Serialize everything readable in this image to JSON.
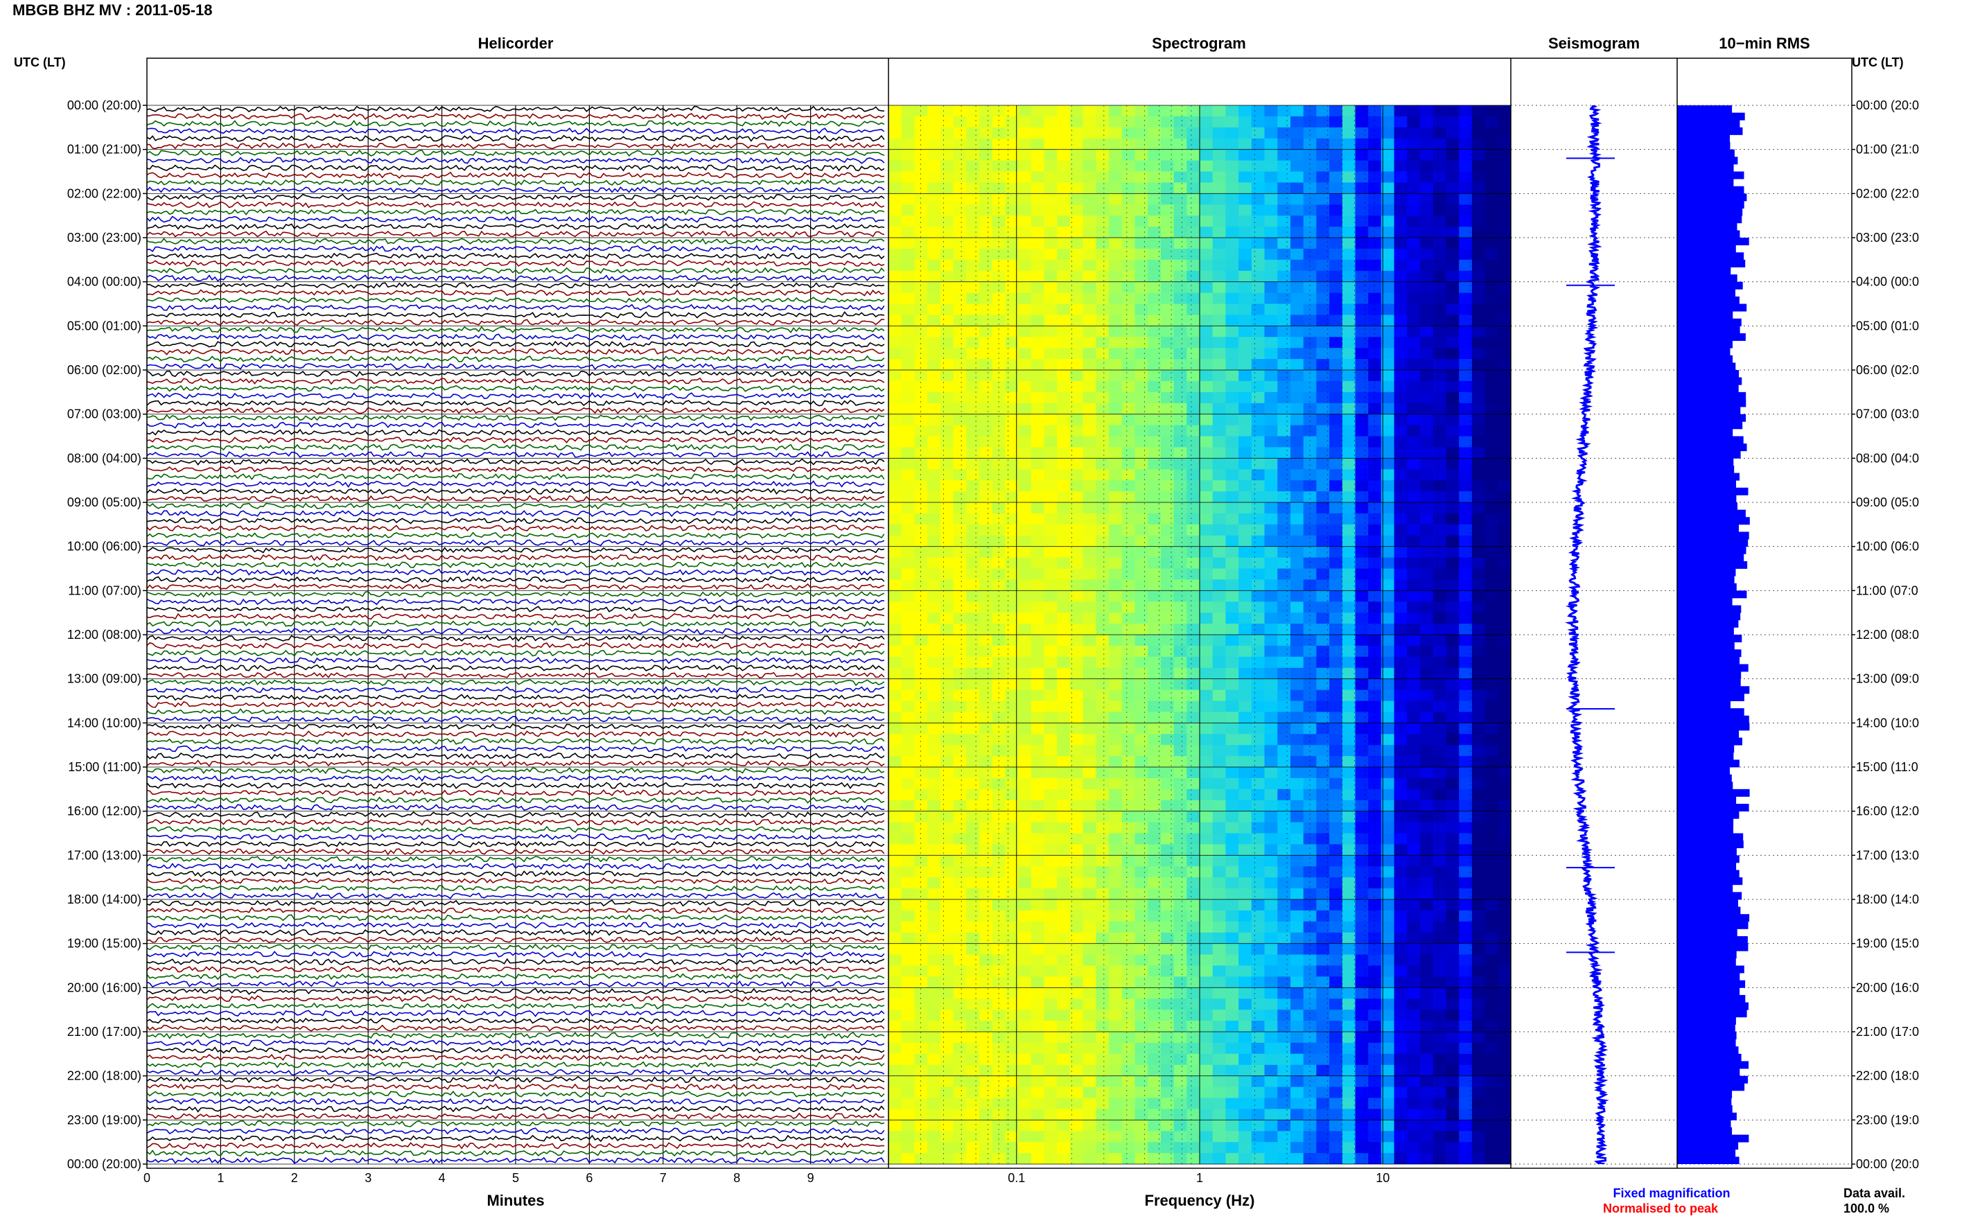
{
  "header": {
    "station_title": "MBGB BHZ MV : 2011-05-18",
    "utc_lt_label": "UTC (LT)"
  },
  "panels": {
    "helicorder": "Helicorder",
    "spectrogram": "Spectrogram",
    "seismogram": "Seismogram",
    "rms": "10−min RMS"
  },
  "footer": {
    "fixed_magnification": "Fixed magnification",
    "normalised_to_peak": "Normalised to peak",
    "data_avail_label": "Data avail.",
    "data_avail_value": "100.0 %"
  },
  "colors": {
    "helicorder_traces": [
      "#000000",
      "#8b0000",
      "#006400",
      "#0000cd"
    ],
    "fixed_magnification": "#0000ff",
    "normalised_to_peak": "#ff0000",
    "seismogram": "#0000ff",
    "rms_bars": "#0000ff"
  },
  "chart_data": [
    {
      "type": "line",
      "title": "Helicorder",
      "xlabel": "Minutes",
      "xlim": [
        0,
        10
      ],
      "x_ticks": [
        0,
        1,
        2,
        3,
        4,
        5,
        6,
        7,
        8,
        9
      ],
      "row_count": 144,
      "row_minutes": 10,
      "y_tick_labels": [
        "00:00 (20:00)",
        "01:00 (21:00)",
        "02:00 (22:00)",
        "03:00 (23:00)",
        "04:00 (00:00)",
        "05:00 (01:00)",
        "06:00 (02:00)",
        "07:00 (03:00)",
        "08:00 (04:00)",
        "09:00 (05:00)",
        "10:00 (06:00)",
        "11:00 (07:00)",
        "12:00 (08:00)",
        "13:00 (09:00)",
        "14:00 (10:00)",
        "15:00 (11:00)",
        "16:00 (12:00)",
        "17:00 (13:00)",
        "18:00 (14:00)",
        "19:00 (15:00)",
        "20:00 (16:00)",
        "21:00 (17:00)",
        "22:00 (18:00)",
        "23:00 (19:00)",
        "00:00 (20:00)"
      ],
      "grid": true
    },
    {
      "type": "heatmap",
      "title": "Spectrogram",
      "xlabel": "Frequency (Hz)",
      "x_scale": "log",
      "xlim": [
        0.02,
        50
      ],
      "x_tick_labels": [
        "0.1",
        "1",
        "10"
      ],
      "x_tick_values": [
        0.1,
        1,
        10
      ],
      "time_range_hours": [
        0,
        24
      ],
      "colormap": [
        "#00008b",
        "#0000ff",
        "#00c8ff",
        "#80ff80",
        "#ffff00"
      ],
      "dominant_band_hz": [
        0.02,
        0.4
      ],
      "spectral_lines_hz": [
        6.3,
        11,
        19,
        27
      ],
      "grid": true
    },
    {
      "type": "line",
      "title": "Seismogram",
      "orientation": "vertical",
      "time_range_hours": [
        0,
        24
      ]
    },
    {
      "type": "bar",
      "title": "10−min RMS",
      "orientation": "horizontal",
      "bar_count": 144,
      "values_relative_range": [
        0.72,
        1.0
      ],
      "y_tick_labels": [
        "00:00 (20:0",
        "01:00 (21:0",
        "02:00 (22:0",
        "03:00 (23:0",
        "04:00 (00:0",
        "05:00 (01:0",
        "06:00 (02:0",
        "07:00 (03:0",
        "08:00 (04:0",
        "09:00 (05:0",
        "10:00 (06:0",
        "11:00 (07:0",
        "12:00 (08:0",
        "13:00 (09:0",
        "14:00 (10:0",
        "15:00 (11:0",
        "16:00 (12:0",
        "17:00 (13:0",
        "18:00 (14:0",
        "19:00 (15:0",
        "20:00 (16:0",
        "21:00 (17:0",
        "22:00 (18:0",
        "23:00 (19:0",
        "00:00 (20:0"
      ]
    }
  ]
}
